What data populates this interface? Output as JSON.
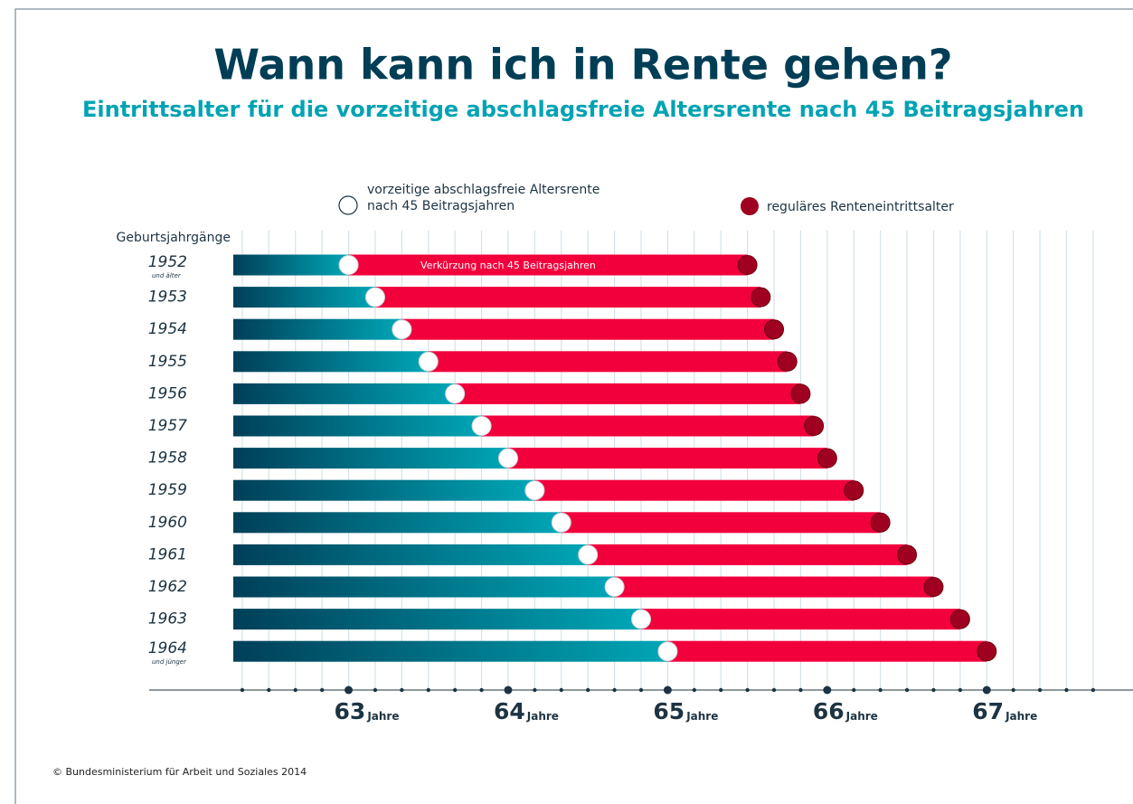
{
  "chart_data": {
    "type": "range_bar",
    "title": "Wann kann ich in Rente gehen?",
    "subtitle": "Eintrittsalter für die vorzeitige abschlagsfreie Altersrente nach 45 Beitragsjahren",
    "y_label": "Geburtsjahrgänge",
    "categories": [
      "1952",
      "1953",
      "1954",
      "1955",
      "1956",
      "1957",
      "1958",
      "1959",
      "1960",
      "1961",
      "1962",
      "1963",
      "1964"
    ],
    "category_notes": {
      "0": "und älter",
      "12": "und jünger"
    },
    "series": [
      {
        "name": "vorzeitige abschlagsfreie Altersrente\nnach 45 Beitragsjahren",
        "color": "#ffffff",
        "values": [
          756,
          758,
          760,
          762,
          764,
          766,
          768,
          770,
          772,
          774,
          776,
          778,
          780
        ]
      },
      {
        "name": "reguläres Renteneintrittsalter",
        "color": "#a0001f",
        "values": [
          786,
          787,
          788,
          789,
          790,
          791,
          792,
          794,
          796,
          798,
          800,
          802,
          804
        ]
      }
    ],
    "annotation": "Verkürzung nach 45 Beitragsjahren",
    "x_unit": "Jahre",
    "xlim": [
      741,
      815
    ],
    "xticks": [
      {
        "value": 756,
        "label": "63"
      },
      {
        "value": 768,
        "label": "64"
      },
      {
        "value": 780,
        "label": "65"
      },
      {
        "value": 792,
        "label": "66"
      },
      {
        "value": 804,
        "label": "67"
      }
    ],
    "minor_xticks": [
      748,
      750,
      752,
      754,
      756,
      758,
      760,
      762,
      764,
      766,
      768,
      770,
      772,
      774,
      776,
      778,
      780,
      782,
      784,
      786,
      788,
      790,
      792,
      794,
      796,
      798,
      800,
      802,
      804,
      806,
      808,
      810,
      812
    ],
    "grid": true,
    "footer": "© Bundesministerium für Arbeit und Soziales 2014"
  }
}
